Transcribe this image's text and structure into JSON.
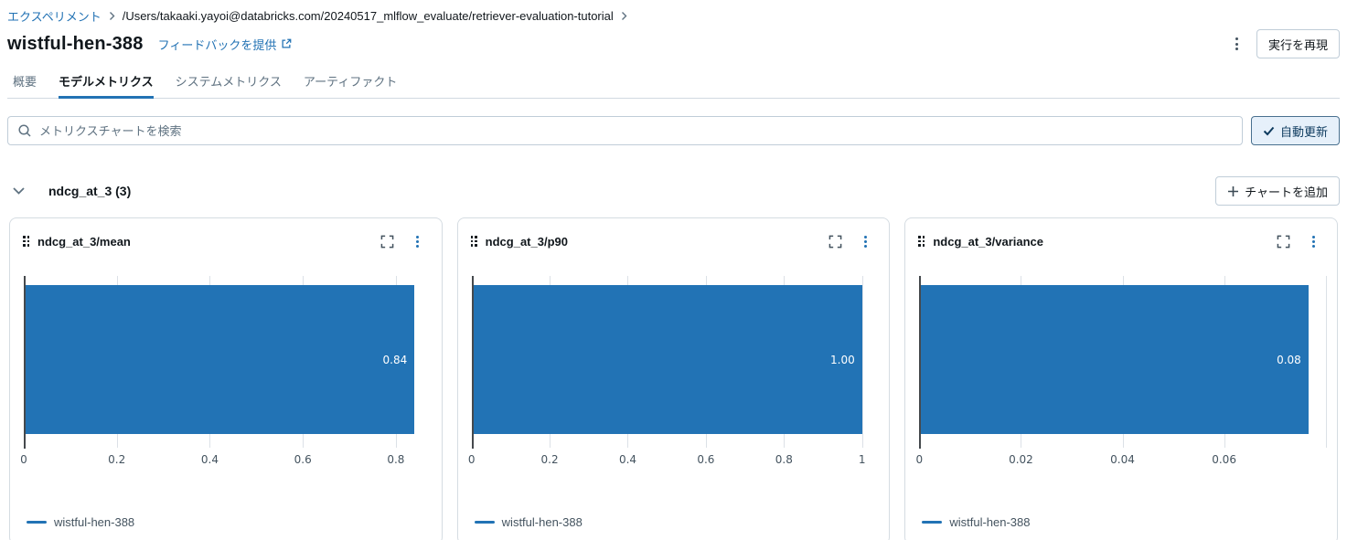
{
  "breadcrumb": {
    "experiment_label": "エクスペリメント",
    "path": "/Users/takaaki.yayoi@databricks.com/20240517_mlflow_evaluate/retriever-evaluation-tutorial"
  },
  "header": {
    "title": "wistful-hen-388",
    "feedback_link_label": "フィードバックを提供",
    "reproduce_run_button": "実行を再現"
  },
  "tabs": [
    {
      "label": "概要",
      "active": false
    },
    {
      "label": "モデルメトリクス",
      "active": true
    },
    {
      "label": "システムメトリクス",
      "active": false
    },
    {
      "label": "アーティファクト",
      "active": false
    }
  ],
  "toolbar": {
    "search_placeholder": "メトリクスチャートを検索",
    "auto_refresh_button": "自動更新",
    "auto_refresh_checked": true
  },
  "section": {
    "title": "ndcg_at_3 (3)",
    "add_chart_button": "チャートを追加"
  },
  "colors": {
    "accent_blue": "#2272B4",
    "bar_blue": "#2273B5",
    "grid_gray": "#DCE1E7"
  },
  "chart_data": [
    {
      "type": "bar",
      "orientation": "horizontal",
      "title": "ndcg_at_3/mean",
      "series": [
        {
          "name": "wistful-hen-388",
          "values": [
            0.84
          ]
        }
      ],
      "value_label": "0.84",
      "xlim": [
        0,
        0.89
      ],
      "xticks": [
        0,
        0.2,
        0.4,
        0.6,
        0.8
      ],
      "xtick_labels": [
        "0",
        "0.2",
        "0.4",
        "0.6",
        "0.8"
      ],
      "unlabeled_gridlines": [],
      "grid": true,
      "legend_position": "bottom"
    },
    {
      "type": "bar",
      "orientation": "horizontal",
      "title": "ndcg_at_3/p90",
      "series": [
        {
          "name": "wistful-hen-388",
          "values": [
            1.0
          ]
        }
      ],
      "value_label": "1.00",
      "xlim": [
        0,
        1.06
      ],
      "xticks": [
        0,
        0.2,
        0.4,
        0.6,
        0.8,
        1
      ],
      "xtick_labels": [
        "0",
        "0.2",
        "0.4",
        "0.6",
        "0.8",
        "1"
      ],
      "unlabeled_gridlines": [],
      "grid": true,
      "legend_position": "bottom"
    },
    {
      "type": "bar",
      "orientation": "horizontal",
      "title": "ndcg_at_3/variance",
      "series": [
        {
          "name": "wistful-hen-388",
          "values": [
            0.0766
          ]
        }
      ],
      "value_label": "0.08",
      "xlim": [
        0,
        0.0815
      ],
      "xticks": [
        0,
        0.02,
        0.04,
        0.06
      ],
      "xtick_labels": [
        "0",
        "0.02",
        "0.04",
        "0.06"
      ],
      "unlabeled_gridlines": [
        0.08
      ],
      "grid": true,
      "legend_position": "bottom"
    }
  ]
}
